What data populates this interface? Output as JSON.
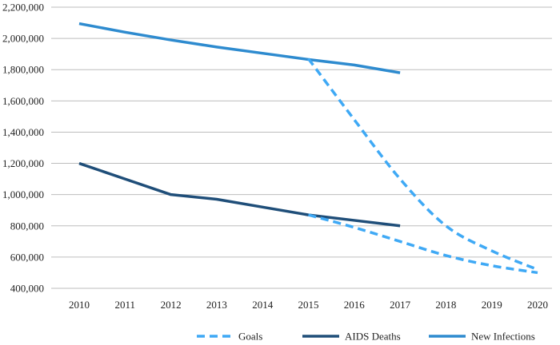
{
  "chart_data": {
    "type": "line",
    "title": "",
    "xlabel": "",
    "ylabel": "",
    "x": [
      2010,
      2011,
      2012,
      2013,
      2014,
      2015,
      2016,
      2017,
      2018,
      2019,
      2020
    ],
    "ylim": [
      400000,
      2200000
    ],
    "y_ticks": [
      400000,
      600000,
      800000,
      1000000,
      1200000,
      1400000,
      1600000,
      1800000,
      2000000,
      2200000
    ],
    "y_tick_labels": [
      "400,000",
      "600,000",
      "800,000",
      "1,000,000",
      "1,200,000",
      "1,400,000",
      "1,600,000",
      "1,800,000",
      "2,000,000",
      "2,200,000"
    ],
    "grid": "horizontal",
    "legend_position": "bottom",
    "series": [
      {
        "name": "Goals",
        "color": "#3fa9f5",
        "style": "dashed",
        "segments": [
          {
            "x": [
              2015,
              2016,
              2017,
              2018,
              2019,
              2020
            ],
            "y": [
              1870000,
              1480000,
              1100000,
              800000,
              640000,
              520000
            ]
          },
          {
            "x": [
              2015,
              2016,
              2017,
              2018,
              2019,
              2020
            ],
            "y": [
              870000,
              790000,
              700000,
              610000,
              545000,
              500000
            ]
          }
        ]
      },
      {
        "name": "AIDS Deaths",
        "color": "#1f4e79",
        "style": "solid",
        "segments": [
          {
            "x": [
              2010,
              2011,
              2012,
              2013,
              2014,
              2015,
              2016,
              2017
            ],
            "y": [
              1200000,
              1100000,
              1000000,
              970000,
              920000,
              870000,
              835000,
              800000
            ]
          }
        ]
      },
      {
        "name": "New Infections",
        "color": "#2e8bcf",
        "style": "solid",
        "segments": [
          {
            "x": [
              2010,
              2011,
              2012,
              2013,
              2014,
              2015,
              2016,
              2017
            ],
            "y": [
              2095000,
              2040000,
              1990000,
              1945000,
              1905000,
              1865000,
              1830000,
              1780000
            ]
          }
        ]
      }
    ]
  }
}
